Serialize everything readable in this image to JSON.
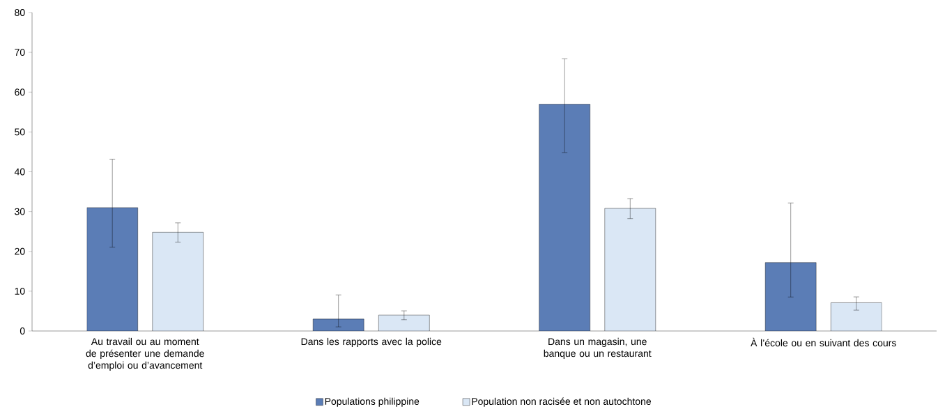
{
  "chart_data": {
    "type": "bar",
    "categories": [
      "Au travail ou au moment de présenter une demande d’emploi ou d’avancement",
      "Dans les rapports avec la police",
      "Dans un magasin, une banque ou un restaurant",
      "À l’école ou en suivant des cours"
    ],
    "series": [
      {
        "name": "Populations philippine",
        "color": "#5b7db6",
        "values": [
          31,
          3,
          57,
          17.2
        ],
        "errors": [
          [
            21,
            43.2
          ],
          [
            1,
            9.1
          ],
          [
            44.8,
            68.4
          ],
          [
            8.5,
            32.2
          ]
        ]
      },
      {
        "name": "Population non racisée et non autochtone",
        "color": "#dae7f5",
        "values": [
          24.8,
          4,
          30.8,
          7.1
        ],
        "errors": [
          [
            22.3,
            27.2
          ],
          [
            2.8,
            5.1
          ],
          [
            28.2,
            33.3
          ],
          [
            5.2,
            8.6
          ]
        ]
      }
    ],
    "ylim": [
      0,
      80
    ],
    "yticks": [
      0,
      10,
      20,
      30,
      40,
      50,
      60,
      70,
      80
    ],
    "grid": false,
    "legend": "bottom"
  }
}
